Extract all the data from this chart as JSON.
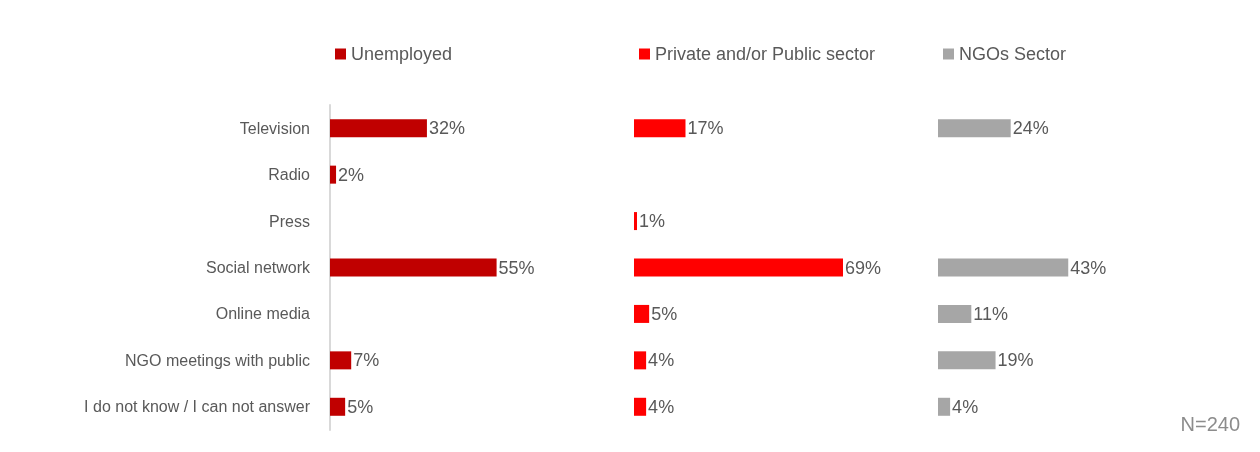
{
  "chart_data": [
    {
      "type": "bar",
      "orientation": "horizontal",
      "categories": [
        "Television",
        "Radio",
        "Press",
        "Social network",
        "Online media",
        "NGO meetings with public",
        "I do not know / I can not answer"
      ],
      "tick_labels": "y",
      "legend": "top",
      "series": [
        {
          "name": "Unemployed",
          "color": "#c00000",
          "values": [
            32,
            2,
            null,
            55,
            null,
            7,
            5
          ],
          "value_labels": [
            "32%",
            "2%",
            null,
            "55%",
            null,
            "7%",
            "5%"
          ]
        }
      ]
    },
    {
      "type": "bar",
      "orientation": "horizontal",
      "categories": [
        null,
        null,
        null,
        null,
        null,
        null,
        null
      ],
      "tick_labels": false,
      "legend": "top",
      "series": [
        {
          "name": "Private and/or Public sector",
          "color": "#ff0000",
          "values": [
            17,
            null,
            1,
            69,
            5,
            4,
            4
          ],
          "value_labels": [
            "17%",
            null,
            "1%",
            "69%",
            "5%",
            "4%",
            "4%"
          ]
        }
      ]
    },
    {
      "type": "bar",
      "orientation": "horizontal",
      "categories": [
        null,
        null,
        null,
        null,
        null,
        null,
        null
      ],
      "tick_labels": false,
      "legend": "top",
      "annotations": [
        "N=240"
      ],
      "series": [
        {
          "name": "NGOs Sector",
          "color": "#a6a6a6",
          "values": [
            24,
            null,
            null,
            43,
            11,
            19,
            4
          ],
          "value_labels": [
            "24%",
            null,
            null,
            "43%",
            "11%",
            "19%",
            "4%"
          ]
        }
      ]
    }
  ]
}
